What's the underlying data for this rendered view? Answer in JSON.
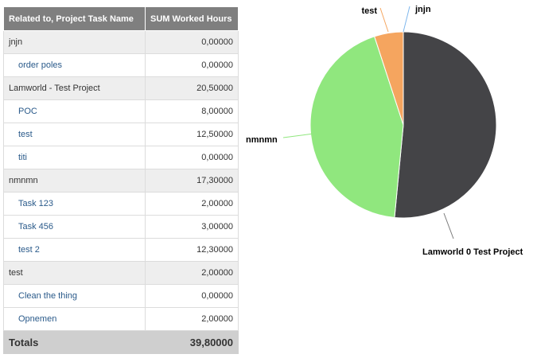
{
  "table": {
    "headers": [
      "Related to, Project Task Name",
      "SUM Worked Hours"
    ],
    "rows": [
      {
        "kind": "group",
        "label": "jnjn",
        "value": "0,00000"
      },
      {
        "kind": "item",
        "label": "order poles",
        "value": "0,00000"
      },
      {
        "kind": "group",
        "label": "Lamworld - Test Project",
        "value": "20,50000"
      },
      {
        "kind": "item",
        "label": "POC",
        "value": "8,00000"
      },
      {
        "kind": "item",
        "label": "test",
        "value": "12,50000"
      },
      {
        "kind": "item",
        "label": "titi",
        "value": "0,00000"
      },
      {
        "kind": "group",
        "label": "nmnmn",
        "value": "17,30000"
      },
      {
        "kind": "item",
        "label": "Task 123",
        "value": "2,00000"
      },
      {
        "kind": "item",
        "label": "Task 456",
        "value": "3,00000"
      },
      {
        "kind": "item",
        "label": "test 2",
        "value": "12,30000"
      },
      {
        "kind": "group",
        "label": "test",
        "value": "2,00000"
      },
      {
        "kind": "item",
        "label": "Clean the thing",
        "value": "0,00000"
      },
      {
        "kind": "item",
        "label": "Opnemen",
        "value": "2,00000"
      }
    ],
    "totals_label": "Totals",
    "totals_value": "39,80000"
  },
  "chart_data": {
    "type": "pie",
    "title": "",
    "slices": [
      {
        "label": "Lamworld 0 Test Project",
        "value": 20.5,
        "color": "#444447"
      },
      {
        "label": "nmnmn",
        "value": 17.3,
        "color": "#90e77e"
      },
      {
        "label": "test",
        "value": 2.0,
        "color": "#f5a55f"
      },
      {
        "label": "jnjn",
        "value": 0.0,
        "color": "#7cb5ec"
      }
    ],
    "start": "top",
    "direction": "clockwise",
    "legend": "none"
  }
}
